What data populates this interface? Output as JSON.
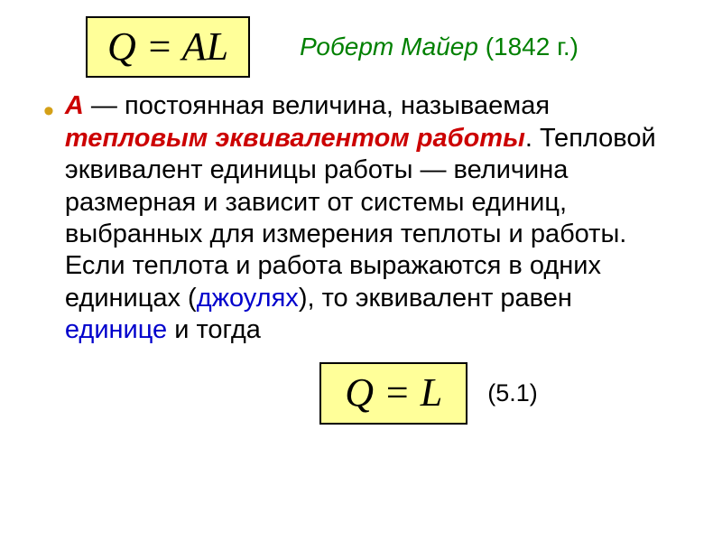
{
  "colors": {
    "formula_bg": "#ffff99",
    "formula_border": "#000000",
    "author_green": "#008000",
    "bullet_gold": "#d4a017",
    "red": "#cc0000",
    "blue": "#0000cc",
    "text": "#000000",
    "page_bg": "#ffffff"
  },
  "typography": {
    "formula_font": "Times New Roman",
    "formula_size_pt": 44,
    "body_font": "Arial",
    "body_size_pt": 29,
    "author_size_pt": 28,
    "eqnum_size_pt": 27
  },
  "formula1": {
    "Q": "Q",
    "eq": " = ",
    "A": "A",
    "L": "L"
  },
  "formula2": {
    "Q": "Q",
    "eq": " = ",
    "L": "L"
  },
  "author": {
    "name": "Роберт Майер",
    "year": " (1842 г.)"
  },
  "body": {
    "p1_A": "А",
    "p1_dash": " — ",
    "p1_t1": "постоянная величина, называемая ",
    "p1_red": "тепловым эквивалентом работы",
    "p1_t2": ". Тепловой эквивалент единицы работы — величина размерная и зависит от системы единиц, выбранных для измерения теплоты и работы. Если теплота и работа выражаются в одних единицах (",
    "p1_blue1": "джоулях",
    "p1_t3": "), то эквивалент равен ",
    "p1_blue2": "единице",
    "p1_t4": " и тогда"
  },
  "eqnum": "(5.1)"
}
